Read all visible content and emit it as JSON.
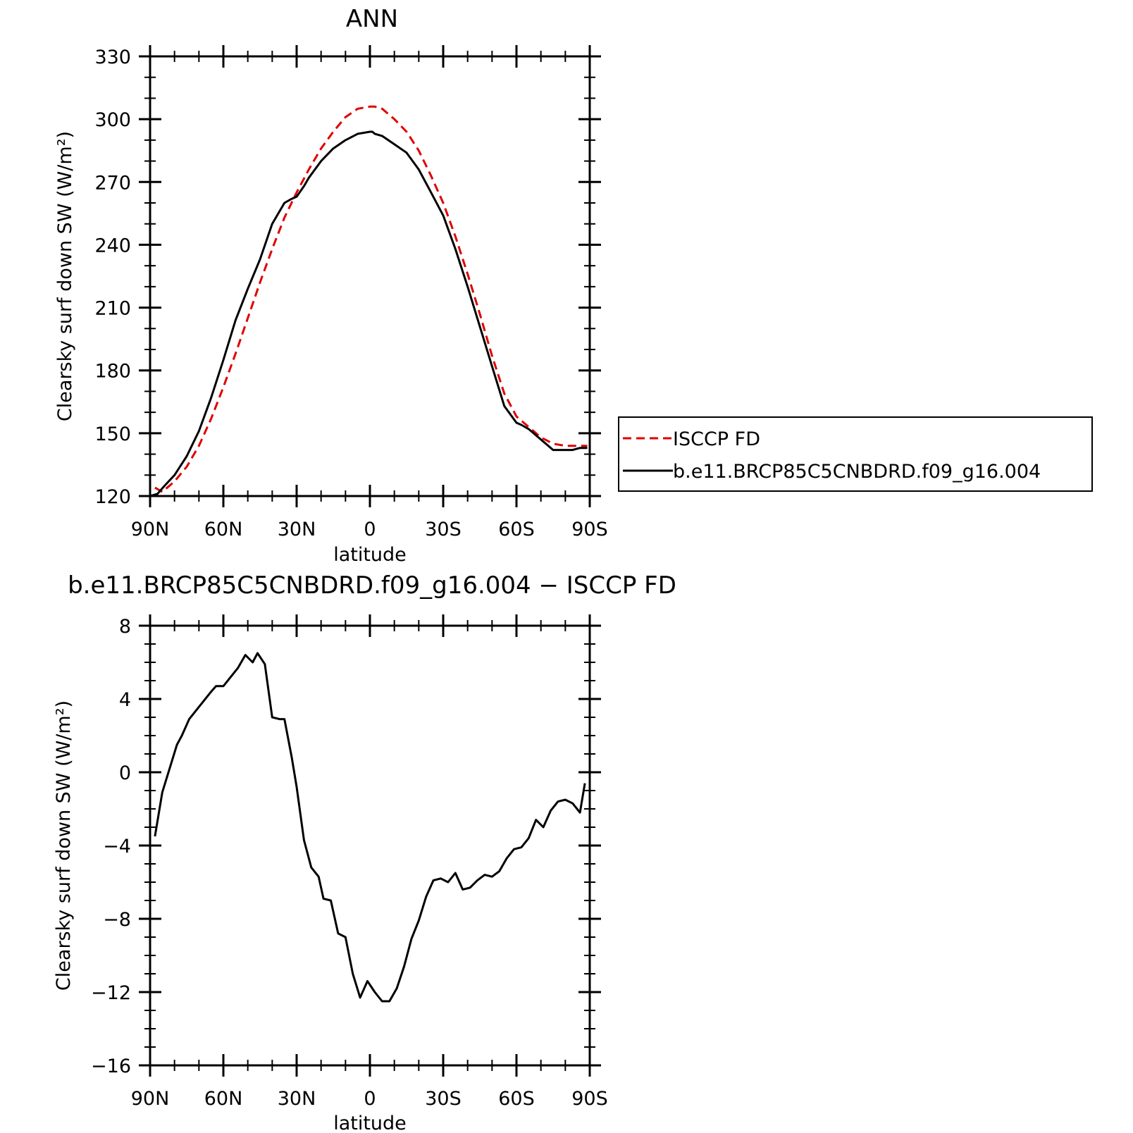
{
  "colors": {
    "isccp": "#e00000",
    "model": "#000000"
  },
  "chart_data": [
    {
      "type": "line",
      "title": "ANN",
      "xlabel": "latitude",
      "ylabel": "Clearsky surf down SW (W/m²)",
      "xlim": [
        -90,
        90
      ],
      "ylim": [
        120,
        330
      ],
      "x_ticks": [
        -90,
        -60,
        -30,
        0,
        30,
        60,
        90
      ],
      "x_tick_labels": [
        "90N",
        "60N",
        "30N",
        "0",
        "30S",
        "60S",
        "90S"
      ],
      "y_ticks": [
        120,
        150,
        180,
        210,
        240,
        270,
        300,
        330
      ],
      "y_tick_labels": [
        "120",
        "150",
        "180",
        "210",
        "240",
        "270",
        "300",
        "330"
      ],
      "legend_position": "right",
      "series": [
        {
          "name": "ISCCP FD",
          "style": "dashed",
          "color": "#e00000",
          "x": [
            -88,
            -85,
            -80,
            -75,
            -70,
            -65,
            -60,
            -55,
            -50,
            -45,
            -40,
            -35,
            -30,
            -25,
            -20,
            -15,
            -10,
            -5,
            0,
            2,
            5,
            10,
            15,
            20,
            25,
            30,
            35,
            40,
            45,
            50,
            55,
            60,
            65,
            70,
            75,
            80,
            85,
            89
          ],
          "y": [
            124,
            122,
            127,
            134,
            144,
            157,
            172,
            188,
            205,
            222,
            238,
            253,
            265,
            276,
            286,
            294,
            301,
            305,
            306,
            306,
            305,
            300,
            294,
            285,
            273,
            260,
            244,
            226,
            207,
            187,
            169,
            158,
            153,
            148,
            145,
            144,
            144,
            144
          ]
        },
        {
          "name": "b.e11.BRCP85C5CNBDRD.f09_g16.004",
          "style": "solid",
          "color": "#000000",
          "x": [
            -90,
            -87,
            -84,
            -80,
            -75,
            -70,
            -65,
            -60,
            -55,
            -50,
            -45,
            -40,
            -35,
            -32,
            -30,
            -27,
            -25,
            -20,
            -15,
            -10,
            -5,
            0,
            1,
            2,
            5,
            10,
            15,
            20,
            25,
            30,
            35,
            40,
            45,
            50,
            55,
            60,
            62,
            65,
            70,
            75,
            80,
            83,
            86,
            89
          ],
          "y": [
            120,
            121,
            125,
            130,
            139,
            151,
            167,
            185,
            204,
            219,
            233,
            250,
            260,
            262,
            263,
            268,
            272,
            280,
            286,
            290,
            293,
            294,
            294,
            293,
            292,
            288,
            284,
            276,
            265,
            254,
            238,
            220,
            201,
            182,
            163,
            155,
            154,
            152,
            147,
            142,
            142,
            142,
            143,
            143
          ]
        }
      ]
    },
    {
      "type": "line",
      "title": "b.e11.BRCP85C5CNBDRD.f09_g16.004 − ISCCP FD",
      "xlabel": "latitude",
      "ylabel": "Clearsky surf down SW (W/m²)",
      "xlim": [
        -90,
        90
      ],
      "ylim": [
        -16,
        8
      ],
      "x_ticks": [
        -90,
        -60,
        -30,
        0,
        30,
        60,
        90
      ],
      "x_tick_labels": [
        "90N",
        "60N",
        "30N",
        "0",
        "30S",
        "60S",
        "90S"
      ],
      "y_ticks": [
        -16,
        -12,
        -8,
        -4,
        0,
        4,
        8
      ],
      "y_tick_labels": [
        "−16",
        "−12",
        "−8",
        "−4",
        "0",
        "4",
        "8"
      ],
      "series": [
        {
          "color": "#000000",
          "x": [
            -88,
            -85,
            -82,
            -79,
            -77,
            -74,
            -71,
            -68,
            -65,
            -63,
            -60,
            -57,
            -54,
            -51,
            -48,
            -46,
            -43,
            -40,
            -37,
            -35,
            -32,
            -30,
            -27,
            -24,
            -21,
            -19,
            -16,
            -13,
            -10,
            -7,
            -4,
            -1,
            2,
            5,
            8,
            11,
            14,
            17,
            20,
            23,
            26,
            29,
            32,
            35,
            38,
            41,
            44,
            47,
            50,
            53,
            56,
            59,
            62,
            65,
            68,
            71,
            74,
            77,
            80,
            83,
            86,
            88
          ],
          "y": [
            -3.5,
            -1.1,
            0.2,
            1.5,
            2.0,
            2.9,
            3.4,
            3.9,
            4.4,
            4.7,
            4.7,
            5.2,
            5.7,
            6.4,
            6.0,
            6.5,
            5.9,
            3.0,
            2.9,
            2.9,
            0.8,
            -0.8,
            -3.7,
            -5.2,
            -5.7,
            -6.9,
            -7.0,
            -8.8,
            -9.0,
            -11.0,
            -12.3,
            -11.4,
            -12.0,
            -12.5,
            -12.5,
            -11.8,
            -10.6,
            -9.1,
            -8.1,
            -6.8,
            -5.9,
            -5.8,
            -6.0,
            -5.5,
            -6.4,
            -6.3,
            -5.9,
            -5.6,
            -5.7,
            -5.4,
            -4.7,
            -4.2,
            -4.1,
            -3.6,
            -2.6,
            -3.0,
            -2.1,
            -1.6,
            -1.5,
            -1.7,
            -2.2,
            -0.6
          ]
        }
      ]
    }
  ]
}
